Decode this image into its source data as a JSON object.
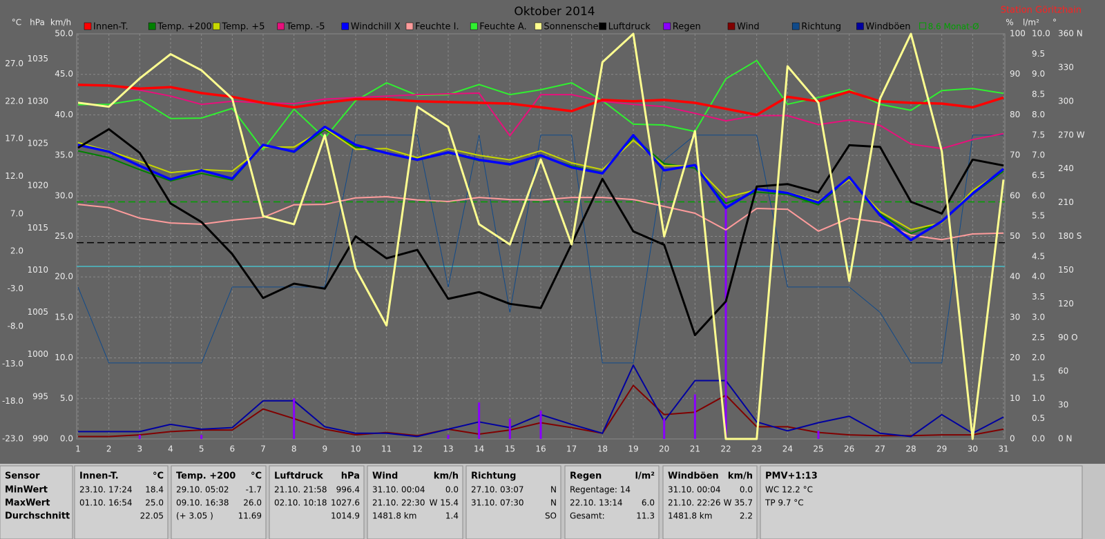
{
  "chart_data": {
    "type": "line",
    "title": "Oktober 2014",
    "station": "Station Göritzhain",
    "categories": [
      "1",
      "2",
      "3",
      "4",
      "5",
      "6",
      "7",
      "8",
      "9",
      "10",
      "11",
      "12",
      "13",
      "14",
      "15",
      "16",
      "17",
      "18",
      "19",
      "20",
      "21",
      "22",
      "23",
      "24",
      "25",
      "26",
      "27",
      "28",
      "29",
      "30",
      "31"
    ],
    "grid": true,
    "axes": {
      "temp": {
        "label": "°C",
        "lim": [
          -23,
          31
        ],
        "ticks": [
          {
            "value": -23,
            "label": "-23.0"
          },
          {
            "value": -18,
            "label": "-18.0"
          },
          {
            "value": -13,
            "label": "-13.0"
          },
          {
            "value": -8,
            "label": "-8.0"
          },
          {
            "value": -3,
            "label": "-3.0"
          },
          {
            "value": 2,
            "label": "2.0"
          },
          {
            "value": 7,
            "label": "7.0"
          },
          {
            "value": 12,
            "label": "12.0"
          },
          {
            "value": 17,
            "label": "17.0"
          },
          {
            "value": 22,
            "label": "22.0"
          },
          {
            "value": 27,
            "label": "27.0"
          }
        ]
      },
      "hpa": {
        "label": "hPa",
        "lim": [
          990,
          1038
        ],
        "ticks": [
          990,
          995,
          1000,
          1005,
          1010,
          1015,
          1020,
          1025,
          1030,
          1035
        ]
      },
      "kmh": {
        "label": "km/h",
        "lim": [
          0,
          50
        ],
        "ticks": [
          {
            "value": 0,
            "label": "0.0"
          },
          {
            "value": 5,
            "label": "5.0"
          },
          {
            "value": 10,
            "label": "10.0"
          },
          {
            "value": 15,
            "label": "15.0"
          },
          {
            "value": 20,
            "label": "20.0"
          },
          {
            "value": 25,
            "label": "25.0"
          },
          {
            "value": 30,
            "label": "30.0"
          },
          {
            "value": 35,
            "label": "35.0"
          },
          {
            "value": 40,
            "label": "40.0"
          },
          {
            "value": 45,
            "label": "45.0"
          },
          {
            "value": 50,
            "label": "50.0"
          }
        ]
      },
      "pct": {
        "label": "%",
        "lim": [
          0,
          100
        ],
        "ticks": [
          0,
          10,
          20,
          30,
          40,
          50,
          60,
          70,
          80,
          90,
          100
        ]
      },
      "rain": {
        "label": "l/m²",
        "lim": [
          0,
          10
        ],
        "ticks": [
          {
            "value": 0,
            "label": "0.0"
          },
          {
            "value": 0.5,
            "label": "0.5"
          },
          {
            "value": 1,
            "label": "1.0"
          },
          {
            "value": 1.5,
            "label": "1.5"
          },
          {
            "value": 2,
            "label": "2.0"
          },
          {
            "value": 2.5,
            "label": "2.5"
          },
          {
            "value": 3,
            "label": "3.0"
          },
          {
            "value": 3.5,
            "label": "3.5"
          },
          {
            "value": 4,
            "label": "4.0"
          },
          {
            "value": 4.5,
            "label": "4.5"
          },
          {
            "value": 5,
            "label": "5.0"
          },
          {
            "value": 5.5,
            "label": "5.5"
          },
          {
            "value": 6,
            "label": "6.0"
          },
          {
            "value": 6.5,
            "label": "6.5"
          },
          {
            "value": 7,
            "label": "7.0"
          },
          {
            "value": 7.5,
            "label": "7.5"
          },
          {
            "value": 8,
            "label": "8.0"
          },
          {
            "value": 8.5,
            "label": "8.5"
          },
          {
            "value": 9,
            "label": "9.0"
          },
          {
            "value": 9.5,
            "label": "9.5"
          },
          {
            "value": 10,
            "label": "10.0"
          }
        ]
      },
      "dir": {
        "label": "°",
        "lim": [
          0,
          360
        ],
        "ticks": [
          {
            "value": 0,
            "label": "0 N"
          },
          30,
          60,
          {
            "value": 90,
            "label": "90 O"
          },
          120,
          150,
          {
            "value": 180,
            "label": "180 S"
          },
          210,
          240,
          {
            "value": 270,
            "label": "270 W"
          },
          300,
          330,
          {
            "value": 360,
            "label": "360 N"
          }
        ]
      }
    },
    "grid_axis": "kmh",
    "series": [
      {
        "name": "Innen-T.",
        "color": "#ff0000",
        "axis": "temp",
        "values": [
          24.2,
          24.1,
          23.7,
          23.9,
          23.1,
          22.6,
          21.8,
          21.2,
          21.8,
          22.3,
          22.3,
          22.0,
          21.9,
          21.8,
          21.7,
          21.2,
          20.7,
          22.2,
          22.0,
          22.2,
          21.8,
          21.0,
          20.2,
          22.6,
          22.0,
          23.3,
          22.0,
          21.8,
          21.7,
          21.2,
          22.5
        ]
      },
      {
        "name": "Temp. +200",
        "color": "#008000",
        "axis": "temp",
        "values": [
          15.4,
          14.5,
          12.9,
          11.4,
          12.4,
          11.5,
          16.2,
          15.2,
          18.2,
          15.9,
          15.1,
          14.2,
          15.1,
          14.1,
          13.7,
          14.7,
          13.4,
          12.5,
          17.2,
          13.7,
          13.1,
          8.4,
          9.9,
          9.6,
          8.2,
          11.8,
          7.0,
          4.4,
          5.9,
          9.6,
          12.7
        ]
      },
      {
        "name": "Temp. +5",
        "color": "#c8d800",
        "axis": "temp",
        "values": [
          16.5,
          15.4,
          14.0,
          12.5,
          12.9,
          12.7,
          15.9,
          15.9,
          18.4,
          15.6,
          15.7,
          14.5,
          15.7,
          14.8,
          14.2,
          15.4,
          13.8,
          12.9,
          16.8,
          13.4,
          13.4,
          9.2,
          10.2,
          9.9,
          8.7,
          11.6,
          7.3,
          4.9,
          5.8,
          10.1,
          12.9
        ]
      },
      {
        "name": "Temp. -5",
        "color": "#e8107c",
        "axis": "temp",
        "values": [
          24.2,
          24.1,
          23.5,
          22.7,
          21.6,
          22.0,
          21.8,
          21.7,
          22.3,
          22.5,
          22.7,
          22.9,
          23.0,
          23.1,
          17.4,
          22.9,
          22.9,
          22.0,
          21.6,
          21.3,
          20.4,
          19.4,
          20.1,
          20.1,
          18.9,
          19.5,
          18.8,
          16.3,
          15.7,
          16.9,
          17.7
        ]
      },
      {
        "name": "Windchill X",
        "color": "#0000ff",
        "axis": "temp",
        "values": [
          16.2,
          15.3,
          13.4,
          11.6,
          12.8,
          11.7,
          16.2,
          15.3,
          18.6,
          16.2,
          15.1,
          14.2,
          15.2,
          14.2,
          13.6,
          14.8,
          13.2,
          12.4,
          17.5,
          12.8,
          13.5,
          7.8,
          10.3,
          9.8,
          8.5,
          11.9,
          6.8,
          3.5,
          6.0,
          9.7,
          13.0
        ]
      },
      {
        "name": "Feuchte I.",
        "color": "#ff9c9c",
        "axis": "pct",
        "values": [
          57.9,
          57.1,
          54.5,
          53.3,
          53.0,
          54.0,
          54.7,
          57.8,
          57.9,
          59.5,
          59.8,
          59.0,
          58.6,
          59.6,
          59.1,
          59.0,
          59.6,
          59.6,
          59.1,
          57.4,
          55.7,
          51.6,
          56.9,
          56.7,
          51.3,
          54.5,
          53.5,
          50.3,
          49.2,
          50.6,
          50.8
        ]
      },
      {
        "name": "Feuchte A.",
        "color": "#30f030",
        "axis": "pct",
        "values": [
          82.5,
          82.6,
          83.8,
          79.1,
          79.2,
          81.6,
          71.4,
          81.4,
          74.3,
          83.5,
          87.9,
          84.8,
          85.0,
          87.5,
          85.0,
          86.2,
          87.9,
          83.5,
          77.7,
          77.5,
          75.9,
          88.9,
          93.4,
          82.6,
          84.3,
          86.2,
          82.6,
          81.1,
          86.0,
          86.5,
          85.3
        ]
      },
      {
        "name": "Sonnenschein",
        "color": "#ffff90",
        "axis": "rain",
        "values": [
          8.3,
          8.2,
          8.9,
          9.5,
          9.1,
          8.4,
          5.5,
          5.3,
          7.5,
          4.2,
          2.8,
          8.2,
          7.7,
          5.3,
          4.8,
          6.9,
          4.8,
          9.3,
          10.0,
          5.0,
          7.6,
          0,
          0,
          9.2,
          8.3,
          3.9,
          8.4,
          10.0,
          7.1,
          0,
          6.4
        ]
      },
      {
        "name": "Luftdruck",
        "color": "#000000",
        "axis": "hpa",
        "values": [
          1024.5,
          1026.7,
          1023.9,
          1017.9,
          1015.7,
          1011.9,
          1006.7,
          1008.4,
          1007.8,
          1014.0,
          1011.4,
          1012.4,
          1006.6,
          1007.4,
          1006.0,
          1005.5,
          1013.1,
          1020.8,
          1014.6,
          1013.0,
          1002.3,
          1006.3,
          1019.9,
          1020.2,
          1019.2,
          1024.8,
          1024.6,
          1018.1,
          1016.7,
          1023.1,
          1022.4
        ]
      },
      {
        "name": "Regen",
        "color": "#8a00ff",
        "axis": "rain",
        "type": "bar",
        "values": [
          0,
          0,
          0.1,
          0,
          0.1,
          0,
          0,
          1.0,
          0,
          0,
          0,
          0,
          0.1,
          0.9,
          0.5,
          0.7,
          0,
          0,
          0,
          0.5,
          1.1,
          6.0,
          0,
          0,
          0.2,
          0,
          0,
          0,
          0,
          0,
          0
        ]
      },
      {
        "name": "Wind",
        "color": "#800000",
        "axis": "kmh",
        "values": [
          0.3,
          0.3,
          0.5,
          0.9,
          1.1,
          1.1,
          3.7,
          2.5,
          1.2,
          0.5,
          0.8,
          0.4,
          1.2,
          0.6,
          1.1,
          2.0,
          1.4,
          0.7,
          6.6,
          3.0,
          3.3,
          5.4,
          1.5,
          1.5,
          0.8,
          0.5,
          0.4,
          0.4,
          0.5,
          0.5,
          1.2
        ]
      },
      {
        "name": "Richtung",
        "color": "#104a8a",
        "axis": "dir",
        "values": [
          135,
          67.5,
          67.5,
          67.5,
          67.5,
          135,
          135,
          135,
          135,
          270,
          270,
          270,
          135,
          270,
          112.5,
          270,
          270,
          67.5,
          67.5,
          247.5,
          270,
          270,
          270,
          135,
          135,
          135,
          112.5,
          67.5,
          67.5,
          270,
          270
        ]
      },
      {
        "name": "Windböen",
        "color": "#0000a0",
        "axis": "kmh",
        "values": [
          0.9,
          0.9,
          0.9,
          1.8,
          1.2,
          1.4,
          4.7,
          4.7,
          1.5,
          0.7,
          0.7,
          0.3,
          1.2,
          2.1,
          1.4,
          3.0,
          1.8,
          0.7,
          9.1,
          2.2,
          7.2,
          7.2,
          2.1,
          1.0,
          2.0,
          2.8,
          0.7,
          0.3,
          3.0,
          0.7,
          2.7
        ]
      }
    ],
    "reference_lines": [
      {
        "label": "8.6 Monat-Ø",
        "axis": "temp",
        "value": 8.6,
        "color": "#00a000",
        "dashed": true
      },
      {
        "axis": "hpa",
        "value": 1013.25,
        "color": "#000000",
        "dashed": true
      },
      {
        "axis": "temp",
        "value": 0,
        "color": "#50a8b0",
        "dashed": false
      }
    ]
  },
  "table": {
    "panels": [
      {
        "title": "Sensor",
        "rows": [
          {
            "left": "MinWert"
          },
          {
            "left": "MaxWert"
          },
          {
            "left": "Durchschnitt"
          }
        ]
      },
      {
        "title": "Innen-T.",
        "unit": "°C",
        "rows": [
          {
            "left": "23.10. 17:24",
            "right": "18.4"
          },
          {
            "left": "01.10. 16:54",
            "right": "25.0"
          },
          {
            "right": "22.05"
          }
        ]
      },
      {
        "title": "Temp. +200",
        "unit": "°C",
        "rows": [
          {
            "left": "29.10. 05:02",
            "right": "-1.7"
          },
          {
            "left": "09.10. 16:38",
            "right": "26.0"
          },
          {
            "left": "(+ 3.05 )",
            "right": "11.69"
          }
        ]
      },
      {
        "title": "Luftdruck",
        "unit": "hPa",
        "rows": [
          {
            "left": "21.10. 21:58",
            "right": "996.4"
          },
          {
            "left": "02.10. 10:18",
            "right": "1027.6"
          },
          {
            "right": "1014.9"
          }
        ]
      },
      {
        "title": "Wind",
        "unit": "km/h",
        "rows": [
          {
            "left": "31.10. 00:04",
            "right": "0.0"
          },
          {
            "left": "21.10. 22:30",
            "right": "W 15.4"
          },
          {
            "left": "1481.8 km",
            "right": "1.4"
          }
        ]
      },
      {
        "title": "Richtung",
        "rows": [
          {
            "left": "27.10. 03:07",
            "right": "N"
          },
          {
            "left": "31.10. 07:30",
            "right": "N"
          },
          {
            "right": "SO"
          }
        ]
      },
      {
        "title": "Regen",
        "unit": "l/m²",
        "rows": [
          {
            "left": "Regentage: 14"
          },
          {
            "left": "22.10. 13:14",
            "right": "6.0"
          },
          {
            "left": "Gesamt:",
            "right": "11.3"
          }
        ]
      },
      {
        "title": "Windböen",
        "unit": "km/h",
        "rows": [
          {
            "left": "31.10. 00:04",
            "right": "0.0"
          },
          {
            "left": "21.10. 22:26",
            "right": "W 35.7"
          },
          {
            "left": "1481.8 km",
            "right": "2.2"
          }
        ]
      },
      {
        "title": "PMV+1:13",
        "rows": [
          {
            "left": "WC 12.2 °C"
          },
          {
            "left": "TP 9.7 °C"
          }
        ]
      }
    ]
  }
}
